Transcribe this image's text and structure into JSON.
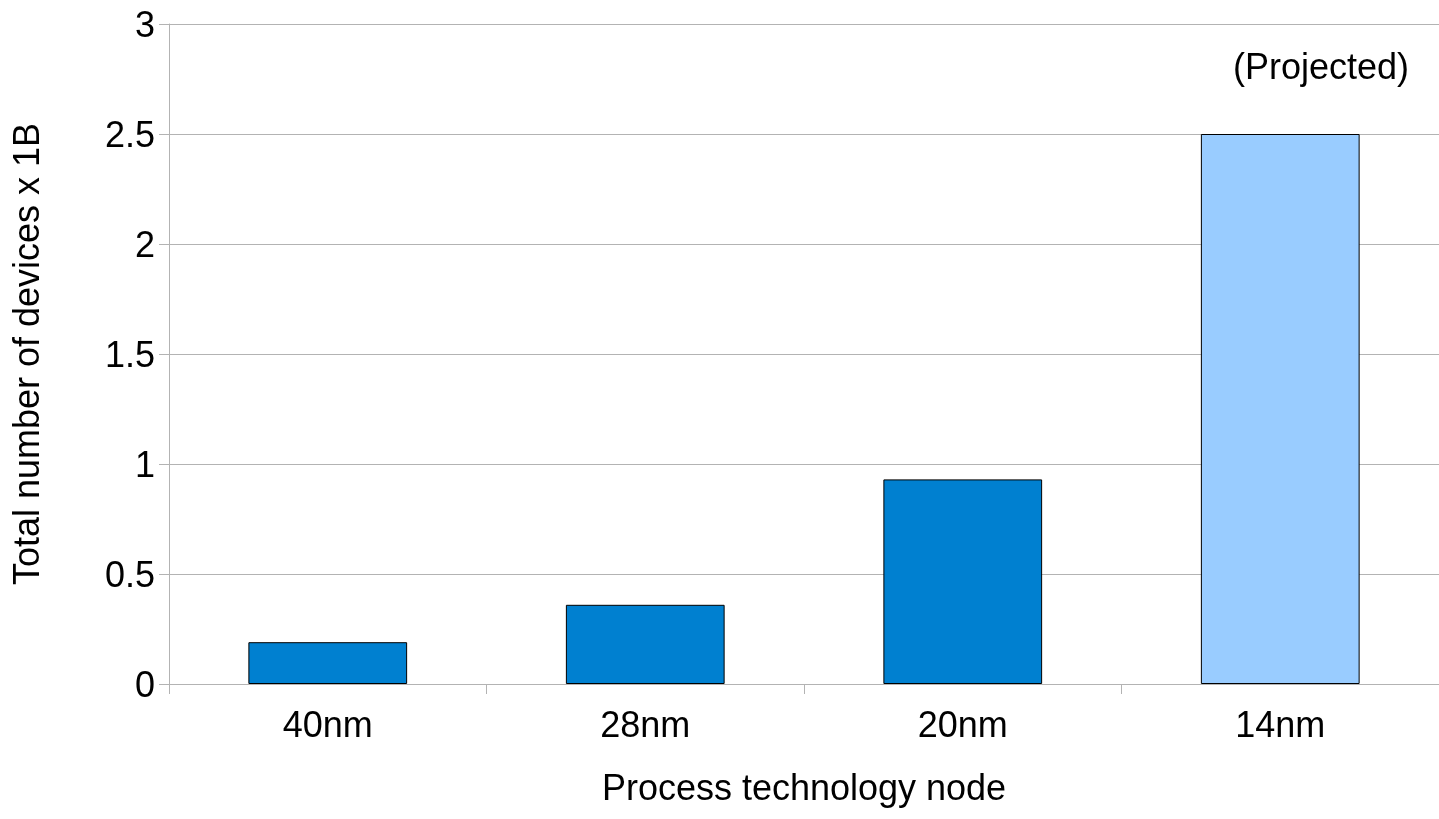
{
  "chart_data": {
    "type": "bar",
    "xlabel": "Process technology node",
    "ylabel": "Total number of devices x 1B",
    "categories": [
      "40nm",
      "28nm",
      "20nm",
      "14nm"
    ],
    "values": [
      0.19,
      0.36,
      0.93,
      2.5
    ],
    "colors": [
      "#0080d0",
      "#0080d0",
      "#0080d0",
      "#99ccff"
    ],
    "ylim": [
      0,
      3
    ],
    "yticks": [
      0,
      0.5,
      1,
      1.5,
      2,
      2.5,
      3
    ],
    "grid": "y",
    "annotations": [
      "(Projected)"
    ]
  }
}
